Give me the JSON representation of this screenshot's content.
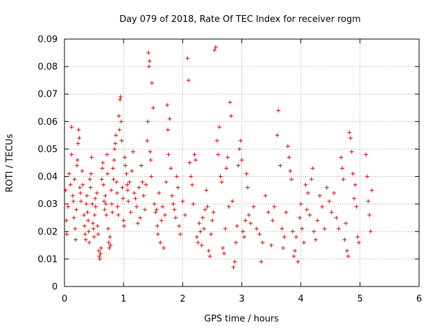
{
  "chart_data": {
    "type": "scatter",
    "title": "Day 079 of 2018, Rate Of TEC Index for receiver rogm",
    "xlabel": "GPS time / hours",
    "ylabel": "ROTI / TECUs",
    "xlim": [
      0,
      6
    ],
    "ylim": [
      0,
      0.09
    ],
    "xticks": [
      0,
      1,
      2,
      3,
      4,
      5,
      6
    ],
    "xtick_labels": [
      "0",
      "1",
      "2",
      "3",
      "4",
      "5",
      "6"
    ],
    "yticks": [
      0,
      0.01,
      0.02,
      0.03,
      0.04,
      0.05,
      0.06,
      0.07,
      0.08,
      0.09
    ],
    "ytick_labels": [
      "0",
      "0.01",
      "0.02",
      "0.03",
      "0.04",
      "0.05",
      "0.06",
      "0.07",
      "0.08",
      "0.09"
    ],
    "grid": true,
    "marker": "+",
    "color": "#e00000",
    "series": [
      {
        "name": "ROTI",
        "points": [
          [
            0.02,
            0.035
          ],
          [
            0.03,
            0.024
          ],
          [
            0.04,
            0.019
          ],
          [
            0.06,
            0.029
          ],
          [
            0.08,
            0.041
          ],
          [
            0.1,
            0.037
          ],
          [
            0.12,
            0.058
          ],
          [
            0.12,
            0.048
          ],
          [
            0.14,
            0.033
          ],
          [
            0.15,
            0.031
          ],
          [
            0.16,
            0.025
          ],
          [
            0.17,
            0.039
          ],
          [
            0.18,
            0.021
          ],
          [
            0.19,
            0.017
          ],
          [
            0.2,
            0.028
          ],
          [
            0.21,
            0.044
          ],
          [
            0.22,
            0.046
          ],
          [
            0.23,
            0.052
          ],
          [
            0.24,
            0.057
          ],
          [
            0.25,
            0.054
          ],
          [
            0.26,
            0.036
          ],
          [
            0.27,
            0.034
          ],
          [
            0.28,
            0.031
          ],
          [
            0.3,
            0.042
          ],
          [
            0.31,
            0.037
          ],
          [
            0.33,
            0.026
          ],
          [
            0.34,
            0.022
          ],
          [
            0.35,
            0.019
          ],
          [
            0.36,
            0.017
          ],
          [
            0.37,
            0.03
          ],
          [
            0.38,
            0.033
          ],
          [
            0.39,
            0.027
          ],
          [
            0.4,
            0.024
          ],
          [
            0.41,
            0.02
          ],
          [
            0.42,
            0.016
          ],
          [
            0.43,
            0.039
          ],
          [
            0.44,
            0.036
          ],
          [
            0.45,
            0.041
          ],
          [
            0.46,
            0.047
          ],
          [
            0.47,
            0.03
          ],
          [
            0.48,
            0.023
          ],
          [
            0.49,
            0.021
          ],
          [
            0.5,
            0.018
          ],
          [
            0.51,
            0.026
          ],
          [
            0.52,
            0.032
          ],
          [
            0.53,
            0.029
          ],
          [
            0.55,
            0.034
          ],
          [
            0.56,
            0.022
          ],
          [
            0.57,
            0.019
          ],
          [
            0.58,
            0.013
          ],
          [
            0.59,
            0.011
          ],
          [
            0.6,
            0.01
          ],
          [
            0.61,
            0.012
          ],
          [
            0.62,
            0.014
          ],
          [
            0.63,
            0.039
          ],
          [
            0.64,
            0.043
          ],
          [
            0.65,
            0.045
          ],
          [
            0.66,
            0.037
          ],
          [
            0.67,
            0.031
          ],
          [
            0.68,
            0.028
          ],
          [
            0.69,
            0.033
          ],
          [
            0.7,
            0.03
          ],
          [
            0.71,
            0.026
          ],
          [
            0.72,
            0.048
          ],
          [
            0.73,
            0.041
          ],
          [
            0.74,
            0.021
          ],
          [
            0.75,
            0.016
          ],
          [
            0.76,
            0.014
          ],
          [
            0.77,
            0.018
          ],
          [
            0.78,
            0.015
          ],
          [
            0.79,
            0.035
          ],
          [
            0.8,
            0.03
          ],
          [
            0.81,
            0.027
          ],
          [
            0.82,
            0.043
          ],
          [
            0.83,
            0.039
          ],
          [
            0.84,
            0.046
          ],
          [
            0.85,
            0.05
          ],
          [
            0.86,
            0.052
          ],
          [
            0.87,
            0.055
          ],
          [
            0.88,
            0.038
          ],
          [
            0.89,
            0.034
          ],
          [
            0.9,
            0.029
          ],
          [
            0.91,
            0.026
          ],
          [
            0.92,
            0.062
          ],
          [
            0.93,
            0.057
          ],
          [
            0.94,
            0.068
          ],
          [
            0.95,
            0.069
          ],
          [
            0.96,
            0.06
          ],
          [
            0.97,
            0.053
          ],
          [
            0.98,
            0.036
          ],
          [
            0.99,
            0.032
          ],
          [
            1.0,
            0.024
          ],
          [
            1.01,
            0.022
          ],
          [
            1.02,
            0.047
          ],
          [
            1.03,
            0.044
          ],
          [
            1.05,
            0.041
          ],
          [
            1.06,
            0.037
          ],
          [
            1.07,
            0.035
          ],
          [
            1.08,
            0.031
          ],
          [
            1.1,
            0.038
          ],
          [
            1.12,
            0.027
          ],
          [
            1.14,
            0.042
          ],
          [
            1.16,
            0.049
          ],
          [
            1.18,
            0.034
          ],
          [
            1.2,
            0.032
          ],
          [
            1.22,
            0.029
          ],
          [
            1.24,
            0.023
          ],
          [
            1.26,
            0.036
          ],
          [
            1.28,
            0.025
          ],
          [
            1.3,
            0.044
          ],
          [
            1.32,
            0.038
          ],
          [
            1.34,
            0.033
          ],
          [
            1.36,
            0.028
          ],
          [
            1.38,
            0.037
          ],
          [
            1.4,
            0.053
          ],
          [
            1.41,
            0.06
          ],
          [
            1.42,
            0.085
          ],
          [
            1.43,
            0.08
          ],
          [
            1.44,
            0.082
          ],
          [
            1.45,
            0.049
          ],
          [
            1.46,
            0.046
          ],
          [
            1.47,
            0.04
          ],
          [
            1.48,
            0.074
          ],
          [
            1.5,
            0.065
          ],
          [
            1.52,
            0.03
          ],
          [
            1.54,
            0.027
          ],
          [
            1.56,
            0.028
          ],
          [
            1.57,
            0.022
          ],
          [
            1.58,
            0.019
          ],
          [
            1.6,
            0.034
          ],
          [
            1.62,
            0.016
          ],
          [
            1.64,
            0.024
          ],
          [
            1.66,
            0.029
          ],
          [
            1.68,
            0.014
          ],
          [
            1.7,
            0.026
          ],
          [
            1.72,
            0.038
          ],
          [
            1.74,
            0.066
          ],
          [
            1.75,
            0.057
          ],
          [
            1.76,
            0.048
          ],
          [
            1.78,
            0.061
          ],
          [
            1.8,
            0.043
          ],
          [
            1.82,
            0.033
          ],
          [
            1.84,
            0.03
          ],
          [
            1.86,
            0.028
          ],
          [
            1.88,
            0.025
          ],
          [
            1.9,
            0.04
          ],
          [
            1.92,
            0.036
          ],
          [
            1.94,
            0.022
          ],
          [
            1.96,
            0.019
          ],
          [
            2.0,
            0.031
          ],
          [
            2.04,
            0.026
          ],
          [
            2.08,
            0.083
          ],
          [
            2.1,
            0.075
          ],
          [
            2.12,
            0.045
          ],
          [
            2.14,
            0.04
          ],
          [
            2.16,
            0.037
          ],
          [
            2.18,
            0.03
          ],
          [
            2.2,
            0.048
          ],
          [
            2.22,
            0.046
          ],
          [
            2.24,
            0.018
          ],
          [
            2.26,
            0.016
          ],
          [
            2.28,
            0.023
          ],
          [
            2.3,
            0.02
          ],
          [
            2.32,
            0.015
          ],
          [
            2.34,
            0.025
          ],
          [
            2.36,
            0.021
          ],
          [
            2.38,
            0.028
          ],
          [
            2.4,
            0.035
          ],
          [
            2.42,
            0.029
          ],
          [
            2.44,
            0.013
          ],
          [
            2.46,
            0.011
          ],
          [
            2.48,
            0.019
          ],
          [
            2.5,
            0.024
          ],
          [
            2.52,
            0.027
          ],
          [
            2.54,
            0.086
          ],
          [
            2.56,
            0.087
          ],
          [
            2.58,
            0.053
          ],
          [
            2.6,
            0.048
          ],
          [
            2.62,
            0.058
          ],
          [
            2.64,
            0.04
          ],
          [
            2.66,
            0.038
          ],
          [
            2.68,
            0.014
          ],
          [
            2.7,
            0.012
          ],
          [
            2.72,
            0.021
          ],
          [
            2.74,
            0.043
          ],
          [
            2.76,
            0.047
          ],
          [
            2.78,
            0.029
          ],
          [
            2.8,
            0.067
          ],
          [
            2.82,
            0.062
          ],
          [
            2.84,
            0.031
          ],
          [
            2.86,
            0.007
          ],
          [
            2.88,
            0.009
          ],
          [
            2.9,
            0.016
          ],
          [
            2.92,
            0.022
          ],
          [
            2.94,
            0.044
          ],
          [
            2.96,
            0.05
          ],
          [
            2.98,
            0.053
          ],
          [
            3.0,
            0.046
          ],
          [
            3.02,
            0.02
          ],
          [
            3.04,
            0.018
          ],
          [
            3.06,
            0.024
          ],
          [
            3.08,
            0.041
          ],
          [
            3.1,
            0.036
          ],
          [
            3.12,
            0.026
          ],
          [
            3.15,
            0.023
          ],
          [
            3.2,
            0.029
          ],
          [
            3.25,
            0.021
          ],
          [
            3.3,
            0.019
          ],
          [
            3.33,
            0.009
          ],
          [
            3.35,
            0.016
          ],
          [
            3.4,
            0.033
          ],
          [
            3.45,
            0.027
          ],
          [
            3.5,
            0.015
          ],
          [
            3.52,
            0.024
          ],
          [
            3.55,
            0.029
          ],
          [
            3.6,
            0.055
          ],
          [
            3.62,
            0.064
          ],
          [
            3.65,
            0.044
          ],
          [
            3.68,
            0.021
          ],
          [
            3.7,
            0.014
          ],
          [
            3.72,
            0.018
          ],
          [
            3.75,
            0.027
          ],
          [
            3.78,
            0.051
          ],
          [
            3.8,
            0.047
          ],
          [
            3.82,
            0.042
          ],
          [
            3.84,
            0.039
          ],
          [
            3.86,
            0.02
          ],
          [
            3.88,
            0.011
          ],
          [
            3.9,
            0.013
          ],
          [
            3.92,
            0.018
          ],
          [
            3.95,
            0.009
          ],
          [
            3.98,
            0.025
          ],
          [
            4.0,
            0.03
          ],
          [
            4.02,
            0.021
          ],
          [
            4.05,
            0.016
          ],
          [
            4.08,
            0.037
          ],
          [
            4.1,
            0.028
          ],
          [
            4.12,
            0.034
          ],
          [
            4.15,
            0.026
          ],
          [
            4.18,
            0.039
          ],
          [
            4.2,
            0.043
          ],
          [
            4.22,
            0.02
          ],
          [
            4.25,
            0.017
          ],
          [
            4.28,
            0.024
          ],
          [
            4.32,
            0.033
          ],
          [
            4.36,
            0.029
          ],
          [
            4.4,
            0.021
          ],
          [
            4.44,
            0.036
          ],
          [
            4.48,
            0.031
          ],
          [
            4.52,
            0.027
          ],
          [
            4.56,
            0.034
          ],
          [
            4.6,
            0.025
          ],
          [
            4.64,
            0.021
          ],
          [
            4.68,
            0.047
          ],
          [
            4.7,
            0.043
          ],
          [
            4.72,
            0.039
          ],
          [
            4.74,
            0.017
          ],
          [
            4.76,
            0.023
          ],
          [
            4.78,
            0.013
          ],
          [
            4.8,
            0.011
          ],
          [
            4.82,
            0.056
          ],
          [
            4.84,
            0.054
          ],
          [
            4.86,
            0.049
          ],
          [
            4.88,
            0.041
          ],
          [
            4.9,
            0.032
          ],
          [
            4.92,
            0.037
          ],
          [
            4.94,
            0.029
          ],
          [
            4.96,
            0.018
          ],
          [
            4.98,
            0.016
          ],
          [
            5.1,
            0.048
          ],
          [
            5.12,
            0.04
          ],
          [
            5.14,
            0.031
          ],
          [
            5.16,
            0.026
          ],
          [
            5.18,
            0.02
          ],
          [
            5.2,
            0.035
          ]
        ]
      }
    ]
  }
}
